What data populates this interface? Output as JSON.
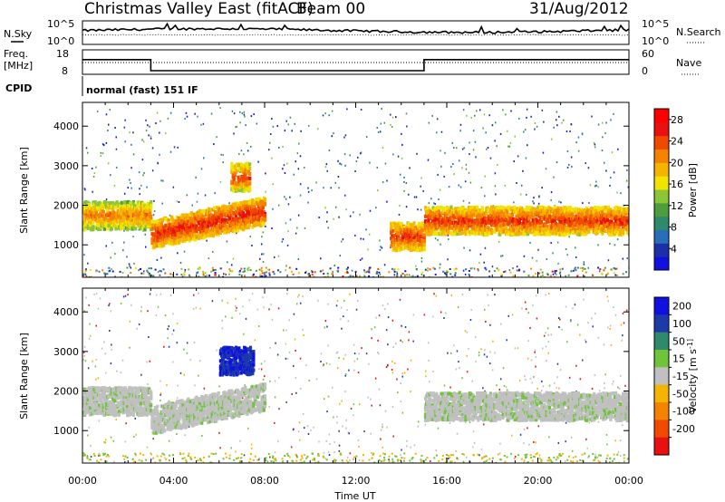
{
  "header": {
    "station": "Christmas Valley East (fitACF)",
    "beam": "Beam 00",
    "date": "31/Aug/2012"
  },
  "side_labels": {
    "nsky": "N.Sky",
    "nsky_ticks": [
      "10^5",
      "10^0"
    ],
    "nsearch": "N.Search",
    "nsearch_ticks": [
      "10^5",
      "10^0"
    ],
    "freq_line1": "Freq.",
    "freq_line2": "[MHz]",
    "freq_ticks": [
      "18",
      "8"
    ],
    "nave": "Nave",
    "nave_ticks": [
      "60",
      "0"
    ],
    "cpid": "CPID",
    "cpid_value": "normal (fast) 151 IF"
  },
  "chart_data": [
    {
      "type": "line",
      "title": "",
      "xlabel": "",
      "ylabel": "Freq. [MHz]",
      "ylim": [
        8,
        18
      ],
      "series": [
        {
          "name": "Freq.",
          "x": [
            "00:00",
            "03:00",
            "03:00",
            "15:00",
            "15:00",
            "24:00"
          ],
          "values": [
            14,
            14,
            9.5,
            9.5,
            14,
            14
          ]
        }
      ]
    },
    {
      "type": "heatmap",
      "title": "",
      "xlabel": "Time UT",
      "ylabel": "Slant Range [km]",
      "xlim": [
        "00:00",
        "24:00"
      ],
      "ylim": [
        180,
        4600
      ],
      "x_ticks": [
        "00:00",
        "04:00",
        "08:00",
        "12:00",
        "16:00",
        "20:00",
        "00:00"
      ],
      "y_ticks": [
        "1000",
        "2000",
        "3000",
        "4000"
      ],
      "colorbar": {
        "label": "Power [dB]",
        "ticks": [
          "4",
          "8",
          "12",
          "16",
          "20",
          "24",
          "28"
        ],
        "range": [
          0,
          30
        ],
        "colors": [
          "#1010e0",
          "#1c2fa8",
          "#2a6db8",
          "#2e8a6a",
          "#4e9e3e",
          "#8cc43a",
          "#f0e400",
          "#f4b400",
          "#f48400",
          "#f04a00",
          "#e81010",
          "#ff0000"
        ]
      },
      "features": [
        {
          "start": "00:00",
          "end": "03:00",
          "range_km": 1780,
          "power_db": 24
        },
        {
          "start": "03:00",
          "end": "08:00",
          "range_km": 1400,
          "power_db": 28
        },
        {
          "start": "06:30",
          "end": "07:20",
          "range_km": 2750,
          "power_db": 26
        },
        {
          "start": "13:30",
          "end": "15:00",
          "range_km": 1250,
          "power_db": 27
        },
        {
          "start": "15:00",
          "end": "24:00",
          "range_km": 1650,
          "power_db": 27
        }
      ]
    },
    {
      "type": "heatmap",
      "title": "",
      "xlabel": "Time UT",
      "ylabel": "Slant Range [km]",
      "xlim": [
        "00:00",
        "24:00"
      ],
      "ylim": [
        180,
        4600
      ],
      "x_ticks": [
        "00:00",
        "04:00",
        "08:00",
        "12:00",
        "16:00",
        "20:00",
        "00:00"
      ],
      "y_ticks": [
        "1000",
        "2000",
        "3000",
        "4000"
      ],
      "colorbar": {
        "label": "Velocity [m s^-1]",
        "ticks": [
          "200",
          "100",
          "50",
          "15",
          "-15",
          "-50",
          "-100",
          "-200"
        ],
        "range": [
          -250,
          250
        ],
        "colors": [
          "#1010e0",
          "#1c3aa8",
          "#2e8a6a",
          "#6ec43a",
          "#c0c0c0",
          "#f4b400",
          "#f48400",
          "#f04a00",
          "#e81010"
        ]
      },
      "features": [
        {
          "start": "00:00",
          "end": "03:00",
          "range_km": 1780,
          "velocity": 0
        },
        {
          "start": "03:00",
          "end": "08:00",
          "range_km": 1400,
          "velocity": 0
        },
        {
          "start": "06:00",
          "end": "07:30",
          "range_km": 2800,
          "velocity": 150
        },
        {
          "start": "15:00",
          "end": "24:00",
          "range_km": 1650,
          "velocity": 0
        }
      ]
    }
  ],
  "time_axis_label": "Time UT"
}
